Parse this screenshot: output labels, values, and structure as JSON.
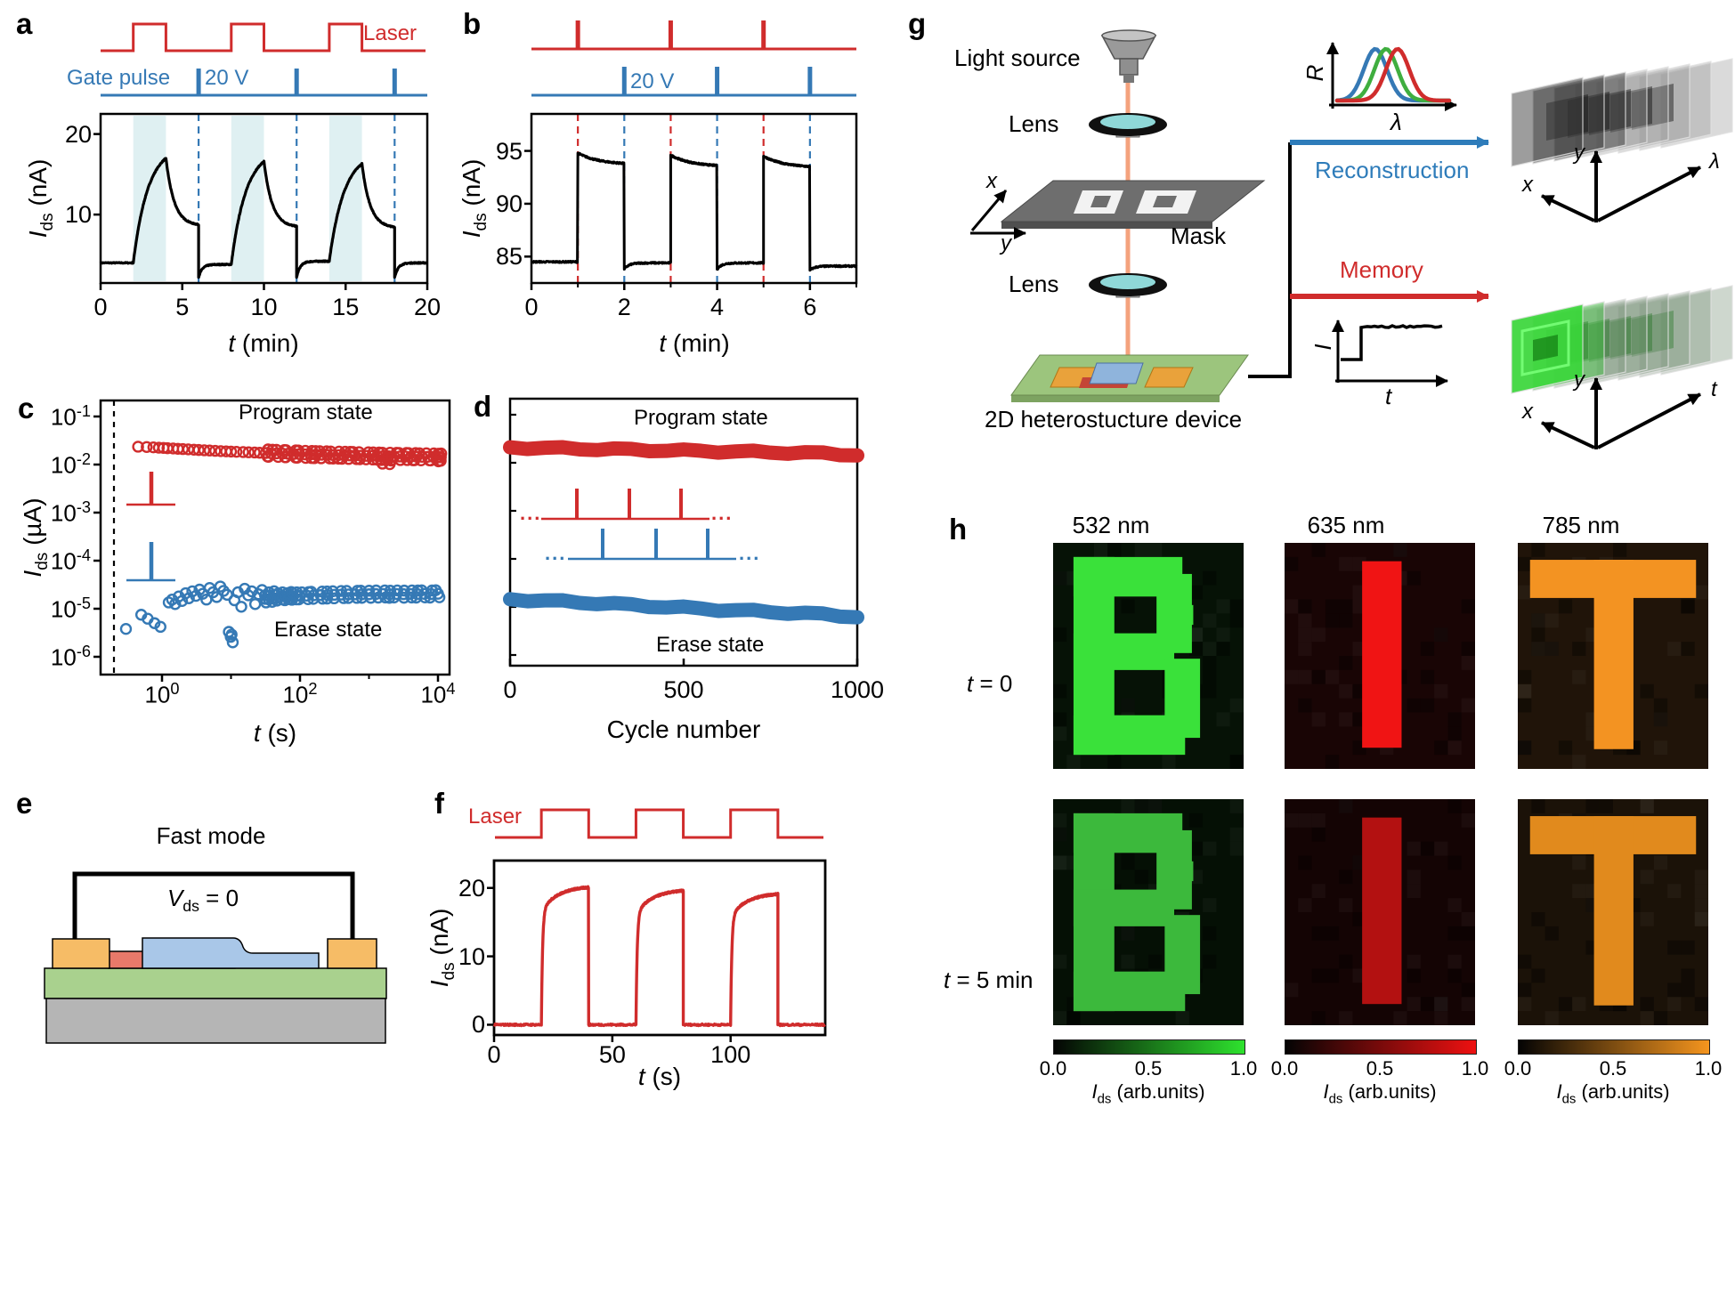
{
  "colors": {
    "red": "#d02c2c",
    "blue": "#3579b5",
    "shade": "#dff0f2",
    "recon_blue": "#2e7cba",
    "black": "#000000"
  },
  "panel_a": {
    "label": "a",
    "laser_label": "Laser",
    "gate_label": "Gate pulse",
    "gate_value": "20 V",
    "ylabel_var": "I",
    "ylabel_sub": "ds",
    "ylabel_rest": " (nA)",
    "xlabel_var": "t",
    "xlabel_rest": " (min)",
    "xticks": [
      0,
      5,
      10,
      15,
      20
    ],
    "yticks": [
      20,
      10
    ],
    "chart": {
      "type": "line",
      "xlim": [
        0,
        20
      ],
      "ylim": [
        1.5,
        22.5
      ],
      "baseline": 4.0,
      "dip": 2.2,
      "light_intervals": [
        [
          2,
          4
        ],
        [
          8,
          10
        ],
        [
          14,
          16
        ]
      ],
      "gate_times": [
        6,
        12,
        18
      ],
      "cycles": [
        {
          "on": 2,
          "off": 4,
          "gate": 6,
          "peak": 17.0,
          "tail": 8.6,
          "rebase": 3.8
        },
        {
          "on": 8,
          "off": 10,
          "gate": 12,
          "peak": 16.6,
          "tail": 8.4,
          "rebase": 4.2
        },
        {
          "on": 14,
          "off": 16,
          "gate": 18,
          "peak": 16.3,
          "tail": 8.3,
          "rebase": 4.0
        }
      ]
    }
  },
  "panel_b": {
    "label": "b",
    "gate_value": "20 V",
    "ylabel_var": "I",
    "ylabel_sub": "ds",
    "ylabel_rest": " (nA)",
    "xlabel_var": "t",
    "xlabel_rest": " (min)",
    "xticks": [
      0,
      2,
      4,
      6
    ],
    "xticks_minor": [
      1,
      3,
      5,
      7
    ],
    "yticks": [
      95,
      90,
      85
    ],
    "chart": {
      "type": "line",
      "xlim": [
        0,
        7
      ],
      "ylim": [
        82.5,
        98.5
      ],
      "baseline": 84.5,
      "red_pulses": [
        1,
        3,
        5
      ],
      "blue_pulses": [
        2,
        4,
        6
      ],
      "cycles": [
        {
          "on": 1,
          "peak": 94.8,
          "end": 93.7,
          "gate": 2,
          "drop": 83.8,
          "rebase": 84.4
        },
        {
          "on": 3,
          "peak": 94.6,
          "end": 93.5,
          "gate": 4,
          "drop": 83.8,
          "rebase": 84.4
        },
        {
          "on": 5,
          "peak": 94.5,
          "end": 93.4,
          "gate": 6,
          "drop": 83.7,
          "rebase": 84.1
        }
      ]
    }
  },
  "panel_c": {
    "label": "c",
    "program_label": "Program state",
    "erase_label": "Erase state",
    "ylabel_var": "I",
    "ylabel_sub": "ds",
    "ylabel_rest": " (µA)",
    "xlabel_var": "t",
    "xlabel_rest": " (s)",
    "log_base": "10",
    "ytick_exps": [
      "-1",
      "-2",
      "-3",
      "-4",
      "-5",
      "-6"
    ],
    "xtick_exps": [
      "0",
      "2",
      "4"
    ],
    "xtick_minor_exps": [
      1,
      3
    ],
    "chart": {
      "type": "scatter",
      "xscale": "log",
      "yscale": "log",
      "xlabel": "t (s)",
      "ylabel": "Ids (uA)",
      "program_series": [
        [
          0.45,
          0.0235
        ],
        [
          0.6,
          0.0232
        ],
        [
          0.75,
          0.0228
        ],
        [
          0.9,
          0.0224
        ],
        [
          1.05,
          0.0222
        ],
        [
          1.2,
          0.0219
        ],
        [
          1.45,
          0.0216
        ],
        [
          1.7,
          0.0213
        ],
        [
          2.0,
          0.021
        ],
        [
          2.4,
          0.0207
        ],
        [
          2.9,
          0.0204
        ],
        [
          3.4,
          0.0201
        ],
        [
          4.1,
          0.0198
        ],
        [
          4.9,
          0.0196
        ],
        [
          5.9,
          0.0193
        ],
        [
          7.1,
          0.019
        ],
        [
          8.5,
          0.0188
        ],
        [
          10,
          0.0186
        ],
        [
          12,
          0.0184
        ],
        [
          15,
          0.0182
        ],
        [
          18,
          0.018
        ],
        [
          22,
          0.0178
        ],
        [
          26,
          0.0176
        ],
        [
          32,
          0.0174
        ],
        [
          38,
          0.0172
        ],
        [
          46,
          0.0171
        ],
        [
          56,
          0.0169
        ],
        [
          67,
          0.0168
        ],
        [
          81,
          0.0166
        ],
        [
          98,
          0.0165
        ],
        [
          118,
          0.0163
        ],
        [
          142,
          0.0162
        ],
        [
          171,
          0.0161
        ],
        [
          206,
          0.016
        ],
        [
          248,
          0.0159
        ],
        [
          299,
          0.0158
        ],
        [
          360,
          0.0157
        ],
        [
          434,
          0.0156
        ],
        [
          523,
          0.0155
        ],
        [
          630,
          0.0154
        ],
        [
          759,
          0.0153
        ],
        [
          914,
          0.0152
        ],
        [
          1101,
          0.0151
        ],
        [
          1326,
          0.015
        ],
        [
          1598,
          0.0149
        ],
        [
          1925,
          0.0149
        ],
        [
          2320,
          0.0148
        ],
        [
          2795,
          0.0147
        ],
        [
          3367,
          0.0147
        ],
        [
          4057,
          0.0146
        ],
        [
          4888,
          0.0146
        ],
        [
          5889,
          0.0145
        ],
        [
          7095,
          0.0145
        ],
        [
          8549,
          0.0144
        ],
        [
          10300,
          0.0143
        ],
        [
          1500,
          0.0124
        ],
        [
          2100,
          0.0121
        ],
        [
          9500,
          0.0138
        ],
        [
          11000,
          0.0142
        ]
      ],
      "erase_series": [
        [
          0.3,
          3.8e-06
        ],
        [
          0.5,
          7.5e-06
        ],
        [
          0.62,
          6.2e-06
        ],
        [
          0.78,
          5e-06
        ],
        [
          0.95,
          4.2e-06
        ],
        [
          1.25,
          1.35e-05
        ],
        [
          1.4,
          1.55e-05
        ],
        [
          1.55,
          1.25e-05
        ],
        [
          1.75,
          1.8e-05
        ],
        [
          1.95,
          1.45e-05
        ],
        [
          2.2,
          2.1e-05
        ],
        [
          2.45,
          1.65e-05
        ],
        [
          2.75,
          2.3e-05
        ],
        [
          3.1,
          1.85e-05
        ],
        [
          3.5,
          2.5e-05
        ],
        [
          3.9,
          2.05e-05
        ],
        [
          4.4,
          1.55e-05
        ],
        [
          4.9,
          2.7e-05
        ],
        [
          5.5,
          2.2e-05
        ],
        [
          6.2,
          1.75e-05
        ],
        [
          7.0,
          2.9e-05
        ],
        [
          7.8,
          2.35e-05
        ],
        [
          8.8,
          1.95e-05
        ],
        [
          9.3,
          3.3e-06
        ],
        [
          9.9,
          2.6e-06
        ],
        [
          10.6,
          2e-06
        ],
        [
          10.2,
          2.9e-06
        ],
        [
          11.2,
          1.5e-05
        ],
        [
          12.6,
          2.2e-05
        ],
        [
          14.1,
          1.1e-05
        ],
        [
          15.8,
          2.6e-05
        ],
        [
          17.8,
          1.9e-05
        ],
        [
          20,
          2.3e-05
        ],
        [
          22.4,
          1.25e-05
        ],
        [
          25.1,
          2e-05
        ],
        [
          28.2,
          2.45e-05
        ],
        [
          31.6,
          1.6e-05
        ],
        [
          35.5,
          1.85e-05
        ],
        [
          39.8,
          1.65e-05
        ],
        [
          44.7,
          1.95e-05
        ],
        [
          50.1,
          1.75e-05
        ],
        [
          56.2,
          1.85e-05
        ],
        [
          63.1,
          1.78e-05
        ],
        [
          70.8,
          1.88e-05
        ],
        [
          79.4,
          1.82e-05
        ],
        [
          89.1,
          1.85e-05
        ],
        [
          100,
          1.85e-05
        ],
        [
          126,
          1.87e-05
        ],
        [
          158,
          1.9e-05
        ],
        [
          200,
          1.92e-05
        ],
        [
          251,
          1.93e-05
        ],
        [
          316,
          1.95e-05
        ],
        [
          398,
          1.97e-05
        ],
        [
          501,
          1.98e-05
        ],
        [
          631,
          1.99e-05
        ],
        [
          794,
          2e-05
        ],
        [
          1000,
          2e-05
        ],
        [
          1259,
          2.02e-05
        ],
        [
          1585,
          2.03e-05
        ],
        [
          1995,
          2e-05
        ],
        [
          2512,
          2.03e-05
        ],
        [
          3162,
          2.01e-05
        ],
        [
          3981,
          2.03e-05
        ],
        [
          5012,
          2.02e-05
        ],
        [
          6310,
          2.04e-05
        ],
        [
          7943,
          2.02e-05
        ],
        [
          10000,
          2.05e-05
        ]
      ]
    }
  },
  "panel_d": {
    "label": "d",
    "program_label": "Program state",
    "erase_label": "Erase state",
    "xlabel": "Cycle number",
    "dots": "...",
    "xticks": [
      0,
      500,
      1000
    ],
    "chart": {
      "type": "band",
      "xlim": [
        0,
        1000
      ],
      "program_band": [
        [
          0,
          0.021
        ],
        [
          50,
          0.0206
        ],
        [
          100,
          0.0202
        ],
        [
          150,
          0.0199
        ],
        [
          200,
          0.0196
        ],
        [
          250,
          0.0193
        ],
        [
          300,
          0.019
        ],
        [
          350,
          0.0187
        ],
        [
          400,
          0.0184
        ],
        [
          450,
          0.0181
        ],
        [
          500,
          0.0178
        ],
        [
          550,
          0.0176
        ],
        [
          600,
          0.0173
        ],
        [
          650,
          0.0171
        ],
        [
          700,
          0.0168
        ],
        [
          750,
          0.0166
        ],
        [
          800,
          0.0163
        ],
        [
          850,
          0.016
        ],
        [
          900,
          0.0157
        ],
        [
          950,
          0.0151
        ],
        [
          1000,
          0.0147
        ]
      ],
      "erase_band": [
        [
          0,
          1.45e-05
        ],
        [
          50,
          1.4e-05
        ],
        [
          100,
          1.35e-05
        ],
        [
          150,
          1.3e-05
        ],
        [
          200,
          1.25e-05
        ],
        [
          250,
          1.2e-05
        ],
        [
          300,
          1.15e-05
        ],
        [
          350,
          1.1e-05
        ],
        [
          400,
          1.05e-05
        ],
        [
          450,
          1e-05
        ],
        [
          500,
          9.6e-06
        ],
        [
          550,
          9.2e-06
        ],
        [
          600,
          8.8e-06
        ],
        [
          650,
          8.5e-06
        ],
        [
          700,
          8.2e-06
        ],
        [
          750,
          7.9e-06
        ],
        [
          800,
          7.6e-06
        ],
        [
          850,
          7.3e-06
        ],
        [
          900,
          7e-06
        ],
        [
          950,
          6.6e-06
        ],
        [
          1000,
          6.3e-06
        ]
      ]
    }
  },
  "panel_e": {
    "label": "e",
    "title": "Fast mode",
    "v_var": "V",
    "v_sub": "ds",
    "v_rest": " = 0"
  },
  "panel_f": {
    "label": "f",
    "laser_label": "Laser",
    "ylabel_var": "I",
    "ylabel_sub": "ds",
    "ylabel_rest": " (nA)",
    "xlabel_var": "t",
    "xlabel_rest": " (s)",
    "xticks": [
      0,
      50,
      100
    ],
    "yticks": [
      20,
      10,
      0
    ],
    "chart": {
      "type": "line",
      "xlim": [
        0,
        140
      ],
      "ylim": [
        -1.5,
        24
      ],
      "light_intervals": [
        [
          20,
          40
        ],
        [
          60,
          80
        ],
        [
          100,
          120
        ]
      ],
      "cycles": [
        {
          "on": 20,
          "off": 40,
          "peak": 20.3
        },
        {
          "on": 60,
          "off": 80,
          "peak": 19.8
        },
        {
          "on": 100,
          "off": 120,
          "peak": 19.3
        }
      ]
    }
  },
  "panel_g": {
    "label": "g",
    "light_source": "Light source",
    "lens1": "Lens",
    "lens2": "Lens",
    "mask": "Mask",
    "device": "2D heterostucture device",
    "reconstruction": "Reconstruction",
    "memory": "Memory",
    "r_axis": "R",
    "lambda_axis": "λ",
    "i_axis": "I",
    "t_axis": "t",
    "x_axis": "x",
    "y_axis": "y",
    "spectra": {
      "amp": 58,
      "sigma": 13,
      "series": [
        {
          "color": "#3579b5",
          "mu": 1545
        },
        {
          "color": "#3fae3f",
          "mu": 1557
        },
        {
          "color": "#d02c2c",
          "mu": 1570
        }
      ]
    }
  },
  "panel_h": {
    "label": "h",
    "col_headers": [
      "532 nm",
      "635 nm",
      "785 nm"
    ],
    "row_labels": [
      {
        "var": "t",
        "rest": " = 0"
      },
      {
        "var": "t",
        "rest": " = 5 min"
      }
    ],
    "cells": [
      [
        {
          "letter": "B",
          "fg": "#3ae13a",
          "bg": "#061206"
        },
        {
          "letter": "I",
          "fg": "#f01414",
          "bg": "#190505"
        },
        {
          "letter": "T",
          "fg": "#f39322",
          "bg": "#201409"
        }
      ],
      [
        {
          "letter": "B",
          "fg": "#3cb93c",
          "bg": "#051005"
        },
        {
          "letter": "I",
          "fg": "#b31111",
          "bg": "#140404"
        },
        {
          "letter": "T",
          "fg": "#e18a1d",
          "bg": "#1b1208"
        }
      ]
    ],
    "colorbar": {
      "ticks": [
        "0.0",
        "0.5",
        "1.0"
      ],
      "label_var": "I",
      "label_sub": "ds",
      "label_rest": " (arb.units)",
      "colors": [
        "#2ee22e",
        "#ee1111",
        "#f5951e"
      ]
    }
  }
}
